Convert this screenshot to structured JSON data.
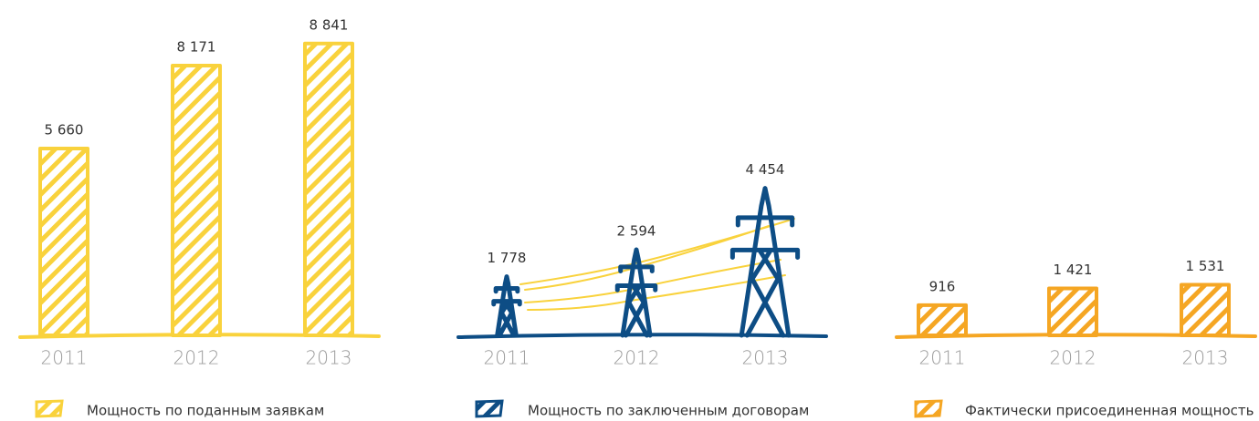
{
  "chart_data": [
    {
      "type": "bar",
      "color": "#f9d23c",
      "categories": [
        "2011",
        "2012",
        "2013"
      ],
      "ylim": [
        0,
        9000
      ],
      "series": [
        {
          "name": "Мощность по поданным заявкам",
          "color": "#f9d23c",
          "values": [
            5660,
            8171,
            8841
          ],
          "value_labels": [
            "5 660",
            "8 171",
            "8 841"
          ]
        }
      ]
    },
    {
      "type": "pictograph",
      "color": "#0d4d85",
      "categories": [
        "2011",
        "2012",
        "2013"
      ],
      "ylim": [
        0,
        9000
      ],
      "series": [
        {
          "name": "Мощность по заключенным договорам",
          "color": "#0d4d85",
          "values": [
            1778,
            2594,
            4454
          ],
          "value_labels": [
            "1 778",
            "2 594",
            "4 454"
          ]
        }
      ]
    },
    {
      "type": "bar",
      "color": "#f5a623",
      "categories": [
        "2011",
        "2012",
        "2013"
      ],
      "ylim": [
        0,
        9000
      ],
      "series": [
        {
          "name": "Фактически присоединенная мощность",
          "color": "#f5a623",
          "values": [
            916,
            1421,
            1531
          ],
          "value_labels": [
            "916",
            "1 421",
            "1 531"
          ]
        }
      ]
    }
  ]
}
